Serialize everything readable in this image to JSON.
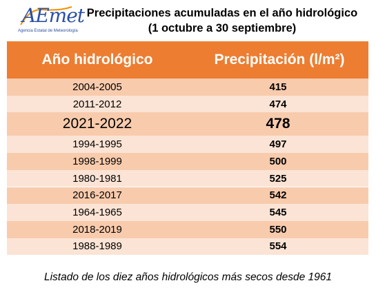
{
  "logo": {
    "icon": "aemet-logo",
    "word": "AEmet",
    "subtitle": "Agencia Estatal de Meteorología",
    "color": "#2a4fa5"
  },
  "header": {
    "title_line1": "Precipitaciones acumuladas en el año hidrológico",
    "title_line2": "(1 octubre a 30 septiembre)"
  },
  "chart_data": {
    "type": "table",
    "columns": [
      "Año hidrológico",
      "Precipitación (l/m²)"
    ],
    "rows": [
      {
        "year": "2004-2005",
        "value": "415"
      },
      {
        "year": "2011-2012",
        "value": "474"
      },
      {
        "year": "2021-2022",
        "value": "478",
        "highlight": true
      },
      {
        "year": "1994-1995",
        "value": "497"
      },
      {
        "year": "1998-1999",
        "value": "500"
      },
      {
        "year": "1980-1981",
        "value": "525"
      },
      {
        "year": "2016-2017",
        "value": "542"
      },
      {
        "year": "1964-1965",
        "value": "545"
      },
      {
        "year": "2018-2019",
        "value": "550"
      },
      {
        "year": "1988-1989",
        "value": "554"
      }
    ],
    "colors": {
      "header": "#ed7d31",
      "row_dark": "#f8cbad",
      "row_light": "#fbe4d5"
    }
  },
  "footer": {
    "caption": "Listado de los diez años hidrológicos más secos desde 1961"
  }
}
